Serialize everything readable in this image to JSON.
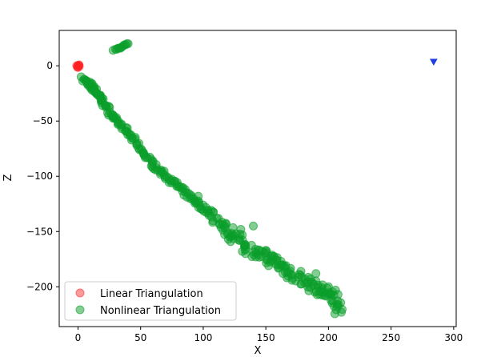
{
  "chart_data": {
    "type": "scatter",
    "title": "",
    "xlabel": "X",
    "ylabel": "Z",
    "xlim": [
      -15,
      302
    ],
    "ylim": [
      -236,
      32
    ],
    "xticks": [
      0,
      50,
      100,
      150,
      200,
      250,
      300
    ],
    "yticks": [
      0,
      -50,
      -100,
      -150,
      -200
    ],
    "grid": false,
    "legend_position": "lower-left",
    "series": [
      {
        "name": "Linear Triangulation",
        "color": "#ff2020",
        "alpha": 0.45,
        "marker": "circle",
        "points": [
          [
            0,
            0
          ],
          [
            -0.5,
            -1
          ],
          [
            0.5,
            0.5
          ],
          [
            1,
            -0.5
          ],
          [
            -1,
            0
          ],
          [
            0,
            -1.5
          ],
          [
            0.8,
            0.8
          ]
        ]
      },
      {
        "name": "Nonlinear Triangulation",
        "color": "#0a9e2a",
        "alpha": 0.5,
        "marker": "circle",
        "trend": [
          [
            4,
            -12
          ],
          [
            10,
            -18
          ],
          [
            15,
            -24
          ],
          [
            20,
            -33
          ],
          [
            28,
            -46
          ],
          [
            36,
            -56
          ],
          [
            45,
            -68
          ],
          [
            55,
            -83
          ],
          [
            65,
            -95
          ],
          [
            75,
            -104
          ],
          [
            85,
            -115
          ],
          [
            95,
            -124
          ],
          [
            105,
            -133
          ],
          [
            115,
            -146
          ],
          [
            125,
            -154
          ],
          [
            135,
            -164
          ],
          [
            145,
            -171
          ],
          [
            155,
            -176
          ],
          [
            165,
            -183
          ],
          [
            175,
            -192
          ],
          [
            185,
            -198
          ],
          [
            195,
            -204
          ],
          [
            205,
            -209
          ],
          [
            208,
            -222
          ]
        ],
        "cluster": [
          [
            28,
            14
          ],
          [
            30,
            15
          ],
          [
            32,
            16
          ],
          [
            33,
            16
          ],
          [
            35,
            17
          ],
          [
            36,
            18
          ],
          [
            37,
            19
          ],
          [
            38,
            19
          ],
          [
            39,
            20
          ],
          [
            40,
            20
          ],
          [
            34,
            16
          ],
          [
            31,
            15
          ]
        ]
      },
      {
        "name": "",
        "color": "#1f3fe0",
        "alpha": 1,
        "marker": "triangle-down",
        "points": [
          [
            284,
            3
          ]
        ]
      }
    ]
  }
}
